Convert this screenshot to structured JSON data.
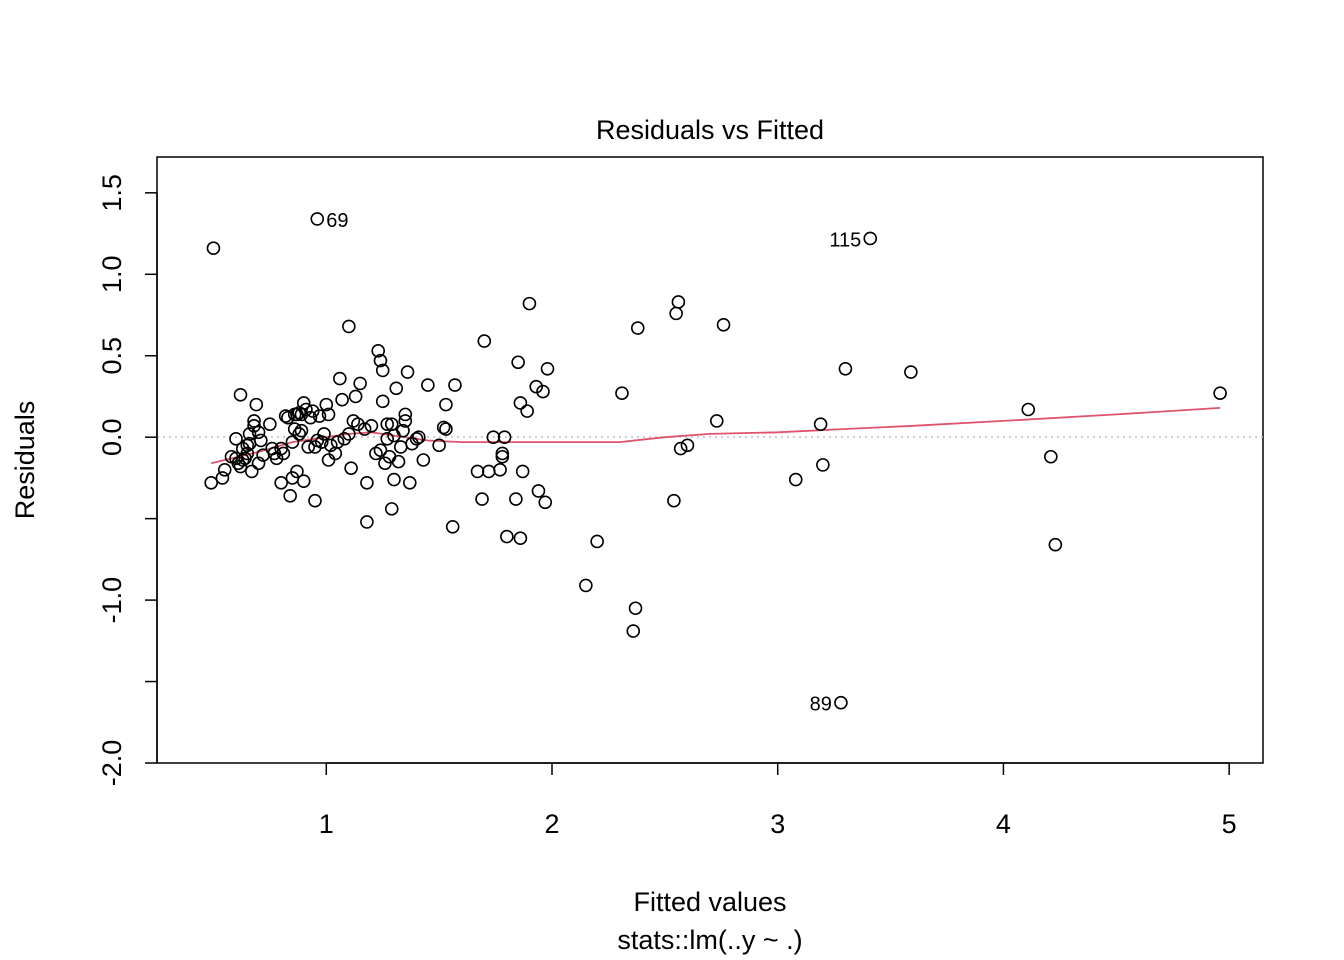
{
  "chart_data": {
    "type": "scatter",
    "title": "Residuals vs Fitted",
    "xlabel": "Fitted values",
    "subtitle": "stats::lm(..y ~ .)",
    "ylabel": "Residuals",
    "xlim": [
      0.25,
      5.15
    ],
    "ylim": [
      -2.0,
      1.72
    ],
    "x_ticks": [
      1,
      2,
      3,
      4,
      5
    ],
    "x_tick_labels": [
      "1",
      "2",
      "3",
      "4",
      "5"
    ],
    "y_ticks": [
      -2.0,
      -1.5,
      -1.0,
      -0.5,
      0.0,
      0.5,
      1.0,
      1.5
    ],
    "y_tick_labels": [
      "-2.0",
      "",
      "-1.0",
      "",
      "0.0",
      "0.5",
      "1.0",
      "1.5"
    ],
    "reference_line": {
      "y": 0,
      "style": "dotted",
      "color": "#bebebe"
    },
    "colors": {
      "points": "#000000",
      "smoother": "#DF536B",
      "box": "#000000"
    },
    "points": [
      [
        0.5,
        1.16
      ],
      [
        0.49,
        -0.28
      ],
      [
        0.54,
        -0.25
      ],
      [
        0.55,
        -0.2
      ],
      [
        0.58,
        -0.12
      ],
      [
        0.6,
        -0.01
      ],
      [
        0.62,
        -0.18
      ],
      [
        0.63,
        -0.14
      ],
      [
        0.62,
        0.26
      ],
      [
        0.64,
        -0.13
      ],
      [
        0.65,
        -0.1
      ],
      [
        0.66,
        -0.04
      ],
      [
        0.66,
        0.02
      ],
      [
        0.67,
        -0.21
      ],
      [
        0.68,
        0.07
      ],
      [
        0.68,
        0.1
      ],
      [
        0.69,
        0.2
      ],
      [
        0.7,
        -0.16
      ],
      [
        0.7,
        0.03
      ],
      [
        0.71,
        -0.02
      ],
      [
        0.72,
        -0.11
      ],
      [
        0.6,
        -0.13
      ],
      [
        0.61,
        -0.16
      ],
      [
        0.63,
        -0.07
      ],
      [
        0.65,
        -0.05
      ],
      [
        0.75,
        0.08
      ],
      [
        0.76,
        -0.07
      ],
      [
        0.77,
        -0.1
      ],
      [
        0.78,
        -0.13
      ],
      [
        0.8,
        -0.07
      ],
      [
        0.8,
        -0.28
      ],
      [
        0.81,
        -0.1
      ],
      [
        0.82,
        0.13
      ],
      [
        0.83,
        0.12
      ],
      [
        0.84,
        -0.36
      ],
      [
        0.85,
        -0.25
      ],
      [
        0.85,
        -0.03
      ],
      [
        0.86,
        0.05
      ],
      [
        0.86,
        0.14
      ],
      [
        0.87,
        0.14
      ],
      [
        0.87,
        -0.21
      ],
      [
        0.88,
        0.02
      ],
      [
        0.88,
        0.15
      ],
      [
        0.89,
        0.14
      ],
      [
        0.89,
        0.04
      ],
      [
        0.9,
        0.21
      ],
      [
        0.9,
        -0.27
      ],
      [
        0.91,
        0.17
      ],
      [
        0.92,
        -0.06
      ],
      [
        0.93,
        0.12
      ],
      [
        0.94,
        0.16
      ],
      [
        0.95,
        -0.39
      ],
      [
        0.95,
        -0.06
      ],
      [
        0.96,
        -0.02
      ],
      [
        0.96,
        1.34
      ],
      [
        0.97,
        0.13
      ],
      [
        0.98,
        -0.03
      ],
      [
        0.99,
        0.02
      ],
      [
        1.0,
        0.2
      ],
      [
        1.01,
        0.14
      ],
      [
        1.01,
        -0.14
      ],
      [
        1.02,
        -0.05
      ],
      [
        1.04,
        -0.1
      ],
      [
        1.05,
        -0.03
      ],
      [
        1.06,
        0.36
      ],
      [
        1.07,
        0.23
      ],
      [
        1.08,
        -0.01
      ],
      [
        1.1,
        0.68
      ],
      [
        1.1,
        0.02
      ],
      [
        1.11,
        -0.19
      ],
      [
        1.12,
        0.1
      ],
      [
        1.13,
        0.25
      ],
      [
        1.14,
        0.08
      ],
      [
        1.15,
        0.33
      ],
      [
        1.17,
        0.05
      ],
      [
        1.18,
        -0.52
      ],
      [
        1.18,
        -0.28
      ],
      [
        1.2,
        0.07
      ],
      [
        1.22,
        -0.1
      ],
      [
        1.23,
        0.53
      ],
      [
        1.24,
        0.47
      ],
      [
        1.24,
        -0.08
      ],
      [
        1.25,
        0.41
      ],
      [
        1.25,
        0.22
      ],
      [
        1.26,
        -0.16
      ],
      [
        1.27,
        0.08
      ],
      [
        1.27,
        -0.01
      ],
      [
        1.28,
        -0.12
      ],
      [
        1.29,
        -0.44
      ],
      [
        1.29,
        0.08
      ],
      [
        1.3,
        -0.26
      ],
      [
        1.3,
        0.01
      ],
      [
        1.31,
        0.3
      ],
      [
        1.32,
        -0.15
      ],
      [
        1.33,
        -0.06
      ],
      [
        1.34,
        0.04
      ],
      [
        1.35,
        0.14
      ],
      [
        1.35,
        0.1
      ],
      [
        1.36,
        0.4
      ],
      [
        1.37,
        -0.28
      ],
      [
        1.38,
        -0.04
      ],
      [
        1.4,
        -0.01
      ],
      [
        1.41,
        0.0
      ],
      [
        1.43,
        -0.14
      ],
      [
        1.45,
        0.32
      ],
      [
        1.5,
        -0.05
      ],
      [
        1.52,
        0.06
      ],
      [
        1.53,
        0.2
      ],
      [
        1.53,
        0.05
      ],
      [
        1.56,
        -0.55
      ],
      [
        1.57,
        0.32
      ],
      [
        1.67,
        -0.21
      ],
      [
        1.69,
        -0.38
      ],
      [
        1.7,
        0.59
      ],
      [
        1.72,
        -0.21
      ],
      [
        1.74,
        0.0
      ],
      [
        1.77,
        -0.2
      ],
      [
        1.78,
        -0.1
      ],
      [
        1.78,
        -0.12
      ],
      [
        1.79,
        0.0
      ],
      [
        1.8,
        -0.61
      ],
      [
        1.84,
        -0.38
      ],
      [
        1.85,
        0.46
      ],
      [
        1.86,
        -0.62
      ],
      [
        1.86,
        0.21
      ],
      [
        1.87,
        -0.21
      ],
      [
        1.89,
        0.16
      ],
      [
        1.9,
        0.82
      ],
      [
        1.93,
        0.31
      ],
      [
        1.94,
        -0.33
      ],
      [
        1.96,
        0.28
      ],
      [
        1.97,
        -0.4
      ],
      [
        1.98,
        0.42
      ],
      [
        2.15,
        -0.91
      ],
      [
        2.2,
        -0.64
      ],
      [
        2.31,
        0.27
      ],
      [
        2.36,
        -1.19
      ],
      [
        2.37,
        -1.05
      ],
      [
        2.38,
        0.67
      ],
      [
        2.54,
        -0.39
      ],
      [
        2.55,
        0.76
      ],
      [
        2.56,
        0.83
      ],
      [
        2.57,
        -0.07
      ],
      [
        2.6,
        -0.05
      ],
      [
        2.73,
        0.1
      ],
      [
        2.76,
        0.69
      ],
      [
        3.08,
        -0.26
      ],
      [
        3.19,
        0.08
      ],
      [
        3.2,
        -0.17
      ],
      [
        3.28,
        -1.63
      ],
      [
        3.3,
        0.42
      ],
      [
        3.41,
        1.22
      ],
      [
        3.59,
        0.4
      ],
      [
        4.11,
        0.17
      ],
      [
        4.21,
        -0.12
      ],
      [
        4.23,
        -0.66
      ],
      [
        4.96,
        0.27
      ]
    ],
    "smoother": [
      [
        0.49,
        -0.16
      ],
      [
        0.7,
        -0.09
      ],
      [
        0.85,
        -0.03
      ],
      [
        1.0,
        0.0
      ],
      [
        1.1,
        0.02
      ],
      [
        1.2,
        0.03
      ],
      [
        1.3,
        0.01
      ],
      [
        1.45,
        -0.02
      ],
      [
        1.6,
        -0.03
      ],
      [
        1.8,
        -0.03
      ],
      [
        2.0,
        -0.03
      ],
      [
        2.3,
        -0.03
      ],
      [
        2.5,
        0.0
      ],
      [
        2.7,
        0.02
      ],
      [
        3.0,
        0.03
      ],
      [
        3.3,
        0.05
      ],
      [
        3.6,
        0.07
      ],
      [
        4.0,
        0.1
      ],
      [
        4.5,
        0.14
      ],
      [
        4.96,
        0.18
      ]
    ],
    "point_labels": [
      {
        "text": "69",
        "x": 0.96,
        "y": 1.34,
        "side": "right"
      },
      {
        "text": "115",
        "x": 3.41,
        "y": 1.22,
        "side": "left"
      },
      {
        "text": "89",
        "x": 3.28,
        "y": -1.63,
        "side": "left"
      }
    ]
  }
}
